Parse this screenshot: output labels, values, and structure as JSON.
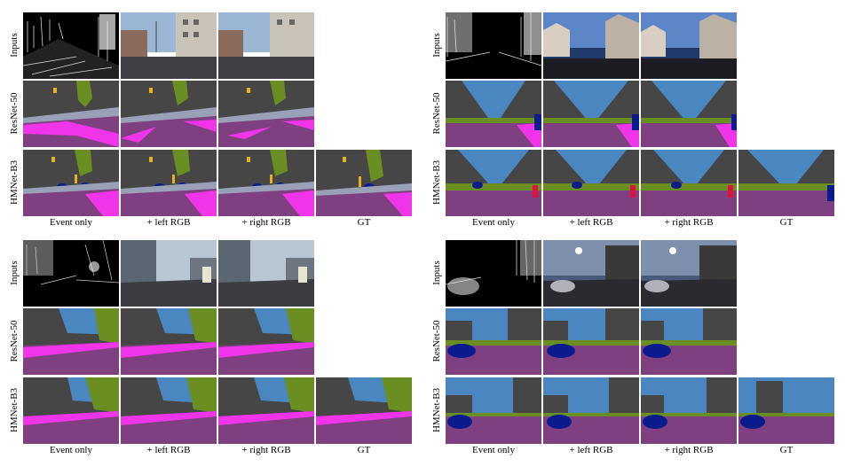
{
  "figure": {
    "row_labels": [
      "Inputs",
      "ResNet-50",
      "HMNet-B3"
    ],
    "column_labels": [
      "Event only",
      "+ left RGB",
      "+ right RGB",
      "GT"
    ]
  },
  "palette": {
    "sky": "#4a86c0",
    "building": "#464646",
    "road": "#7e4080",
    "sidewalk": "#f035e8",
    "vegetation": "#6b8e23",
    "car": "#0b1a8c",
    "sign": "#e6b020",
    "pole": "#999999",
    "person": "#dc143c",
    "terrain": "#9aa0b8"
  }
}
